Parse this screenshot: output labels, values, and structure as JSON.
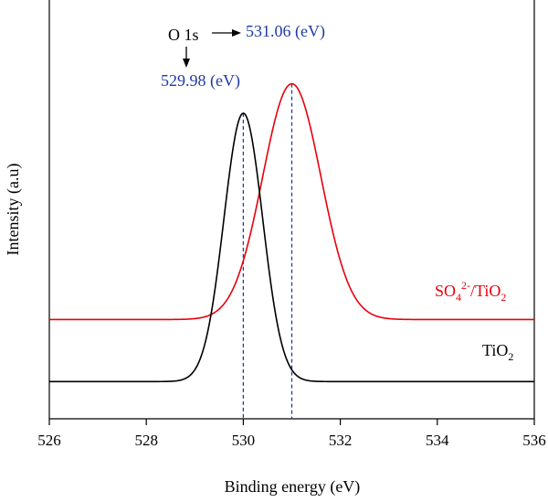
{
  "chart_data": {
    "type": "line",
    "xlabel": "Binding energy (eV)",
    "ylabel": "Intensity (a.u)",
    "xlim": [
      526,
      536
    ],
    "ylim": [
      0,
      1.35
    ],
    "x_ticks": [
      "526",
      "528",
      "530",
      "532",
      "534",
      "536"
    ],
    "grid": false,
    "series": [
      {
        "name": "SO42-/TiO2",
        "label_parts": {
          "base": "SO",
          "sub1": "4",
          "sup": "2-",
          "mid": "/TiO",
          "sub2": "2"
        },
        "color": "#e8000b",
        "baseline": 0.32,
        "peak_height": 0.76,
        "center": 531.0,
        "x": [
          526,
          528,
          529,
          529.5,
          530,
          530.5,
          531,
          531.5,
          532,
          532.5,
          533,
          534,
          536
        ],
        "y": [
          0.32,
          0.323,
          0.365,
          0.452,
          0.659,
          0.947,
          1.08,
          0.947,
          0.659,
          0.452,
          0.365,
          0.323,
          0.32
        ]
      },
      {
        "name": "TiO2",
        "label_parts": {
          "base": "TiO",
          "sub": "2"
        },
        "color": "#000000",
        "baseline": 0.12,
        "peak_height": 0.865,
        "center": 530.0,
        "x": [
          526,
          528,
          528.5,
          529,
          529.5,
          530,
          530.5,
          531,
          531.5,
          532,
          536
        ],
        "y": [
          0.12,
          0.121,
          0.155,
          0.296,
          0.752,
          0.985,
          0.752,
          0.296,
          0.155,
          0.121,
          0.12
        ]
      }
    ],
    "annotations": {
      "o1s": "O 1s",
      "peak_right": "531.06 (eV)",
      "peak_left": "529.98 (eV)",
      "annotation_color": "#1f3aa8"
    }
  }
}
